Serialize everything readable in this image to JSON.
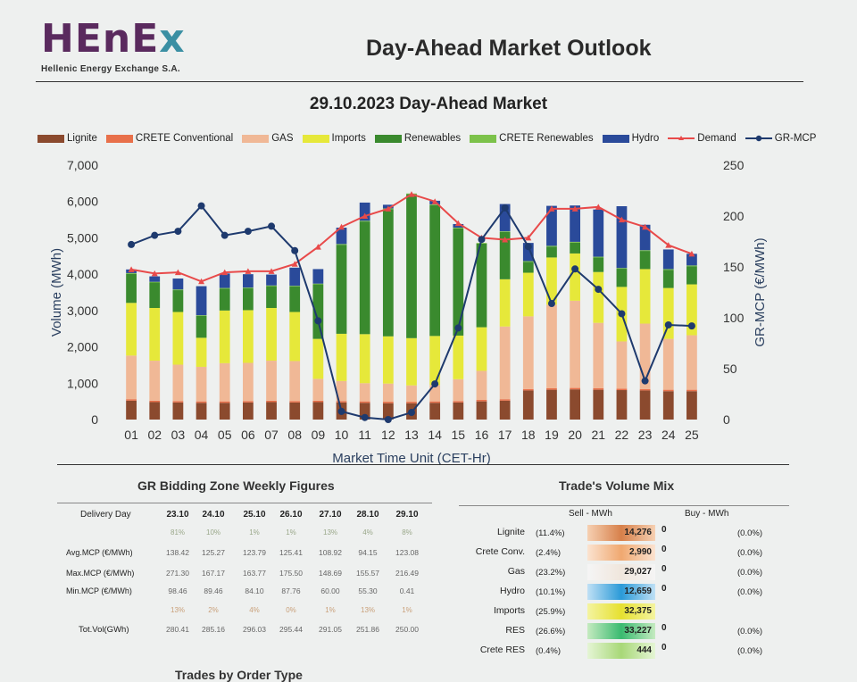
{
  "header": {
    "logo_text": "HEnEx",
    "logo_subtitle": "Hellenic Energy Exchange S.A.",
    "page_title": "Day-Ahead Market Outlook"
  },
  "chart_title": "29.10.2023  Day-Ahead Market",
  "colors": {
    "Lignite": "#8b4a2e",
    "CRETE Conventional": "#e8704a",
    "GAS": "#f0b896",
    "Imports": "#e6e83a",
    "Renewables": "#3a8a2e",
    "CRETE Renewables": "#7cc24a",
    "Hydro": "#2a4a9a",
    "Demand": "#e84a4a",
    "GR-MCP": "#1e3a6e"
  },
  "chart_data": {
    "type": "bar",
    "stacked": true,
    "categories": [
      "01",
      "02",
      "03",
      "04",
      "05",
      "06",
      "07",
      "08",
      "09",
      "10",
      "11",
      "12",
      "13",
      "14",
      "15",
      "16",
      "17",
      "18",
      "19",
      "20",
      "21",
      "22",
      "23",
      "24",
      "25"
    ],
    "xlabel": "Market Time Unit (CET-Hr)",
    "ylabel": "Volume (MWh)",
    "y2label": "GR-MCP (€/MWh)",
    "ylim": [
      0,
      7000
    ],
    "y2lim": [
      0,
      250
    ],
    "yticks": [
      "0",
      "1,000",
      "2,000",
      "3,000",
      "4,000",
      "5,000",
      "6,000",
      "7,000"
    ],
    "y2ticks": [
      "0",
      "50",
      "100",
      "150",
      "200",
      "250"
    ],
    "series": [
      {
        "name": "Lignite",
        "values": [
          520,
          480,
          470,
          460,
          460,
          470,
          480,
          470,
          480,
          470,
          460,
          450,
          450,
          460,
          470,
          500,
          520,
          800,
          820,
          830,
          820,
          810,
          800,
          780,
          780
        ]
      },
      {
        "name": "CRETE Conventional",
        "values": [
          40,
          40,
          40,
          40,
          40,
          40,
          40,
          40,
          40,
          40,
          40,
          40,
          40,
          40,
          40,
          40,
          40,
          40,
          40,
          40,
          40,
          40,
          40,
          40,
          40
        ]
      },
      {
        "name": "GAS",
        "values": [
          1200,
          1100,
          1000,
          950,
          1050,
          1050,
          1100,
          1100,
          600,
          550,
          500,
          500,
          450,
          450,
          600,
          800,
          2000,
          2000,
          2300,
          2400,
          1800,
          1300,
          1800,
          1400,
          1500
        ]
      },
      {
        "name": "Imports",
        "values": [
          1450,
          1450,
          1450,
          800,
          1450,
          1450,
          1450,
          1350,
          1100,
          1300,
          1350,
          1300,
          1300,
          1350,
          1200,
          1200,
          1300,
          1200,
          1300,
          1300,
          1400,
          1500,
          1500,
          1400,
          1400
        ]
      },
      {
        "name": "Renewables",
        "values": [
          800,
          700,
          600,
          600,
          600,
          600,
          600,
          700,
          1500,
          2450,
          3100,
          3500,
          3960,
          3600,
          2950,
          2300,
          1300,
          300,
          300,
          300,
          400,
          500,
          500,
          500,
          500
        ]
      },
      {
        "name": "CRETE Renewables",
        "values": [
          20,
          20,
          20,
          20,
          20,
          20,
          20,
          20,
          20,
          20,
          20,
          20,
          20,
          20,
          20,
          20,
          20,
          20,
          20,
          20,
          20,
          20,
          20,
          20,
          20
        ]
      },
      {
        "name": "Hydro",
        "values": [
          100,
          150,
          300,
          800,
          400,
          370,
          300,
          500,
          400,
          450,
          500,
          100,
          0,
          100,
          100,
          0,
          750,
          500,
          1100,
          1000,
          1300,
          1700,
          700,
          540,
          320
        ]
      }
    ],
    "lines": [
      {
        "name": "Demand",
        "axis": "left",
        "values": [
          4130,
          4020,
          4050,
          3800,
          4050,
          4080,
          4080,
          4280,
          4750,
          5300,
          5600,
          5800,
          6200,
          6000,
          5400,
          5000,
          4950,
          5000,
          5800,
          5800,
          5850,
          5500,
          5300,
          4800,
          4560
        ]
      },
      {
        "name": "GR-MCP",
        "axis": "right",
        "values": [
          172,
          181,
          185,
          210,
          181,
          185,
          190,
          166,
          97,
          8,
          2,
          0,
          7,
          35,
          90,
          177,
          208,
          170,
          114,
          148,
          128,
          104,
          38,
          93,
          92
        ]
      }
    ]
  },
  "weekly": {
    "title": "GR Bidding Zone Weekly Figures",
    "header_label": "Delivery Day",
    "days": [
      "23.10",
      "24.10",
      "25.10",
      "26.10",
      "27.10",
      "28.10",
      "29.10"
    ],
    "change_row": [
      "81%",
      "10%",
      "1%",
      "1%",
      "13%",
      "4%",
      "8%"
    ],
    "rows": [
      {
        "label": "Avg.MCP (€/MWh)",
        "values": [
          "138.42",
          "125.27",
          "123.79",
          "125.41",
          "108.92",
          "94.15",
          "123.08"
        ]
      },
      {
        "label": "Max.MCP (€/MWh)",
        "values": [
          "271.30",
          "167.17",
          "163.77",
          "175.50",
          "148.69",
          "155.57",
          "216.49"
        ]
      },
      {
        "label": "Min.MCP (€/MWh)",
        "values": [
          "98.46",
          "89.46",
          "84.10",
          "87.76",
          "60.00",
          "55.30",
          "0.41"
        ]
      }
    ],
    "change_row2": [
      "13%",
      "2%",
      "4%",
      "0%",
      "1%",
      "13%",
      "1%"
    ],
    "total": {
      "label": "Tot.Vol(GWh)",
      "values": [
        "280.41",
        "285.16",
        "296.03",
        "295.44",
        "291.05",
        "251.86",
        "250.00"
      ]
    }
  },
  "mix": {
    "title": "Trade's Volume Mix",
    "sell_header": "Sell - MWh",
    "buy_header": "Buy - MWh",
    "rows": [
      {
        "label": "Lignite",
        "sell_pct": "(11.4%)",
        "sell": "14,276",
        "buy": "0",
        "buy_pct": "(0.0%)"
      },
      {
        "label": "Crete Conv.",
        "sell_pct": "(2.4%)",
        "sell": "2,990",
        "buy": "0",
        "buy_pct": "(0.0%)"
      },
      {
        "label": "Gas",
        "sell_pct": "(23.2%)",
        "sell": "29,027",
        "buy": "0",
        "buy_pct": "(0.0%)"
      },
      {
        "label": "Hydro",
        "sell_pct": "(10.1%)",
        "sell": "12,659",
        "buy": "0",
        "buy_pct": "(0.0%)"
      },
      {
        "label": "Imports",
        "sell_pct": "(25.9%)",
        "sell": "32,375",
        "buy": "",
        "buy_pct": ""
      },
      {
        "label": "RES",
        "sell_pct": "(26.6%)",
        "sell": "33,227",
        "buy": "0",
        "buy_pct": "(0.0%)"
      },
      {
        "label": "Crete RES",
        "sell_pct": "(0.4%)",
        "sell": "444",
        "buy": "0",
        "buy_pct": "(0.0%)"
      }
    ]
  },
  "bottom_partial_title": "Trades by Order Type"
}
